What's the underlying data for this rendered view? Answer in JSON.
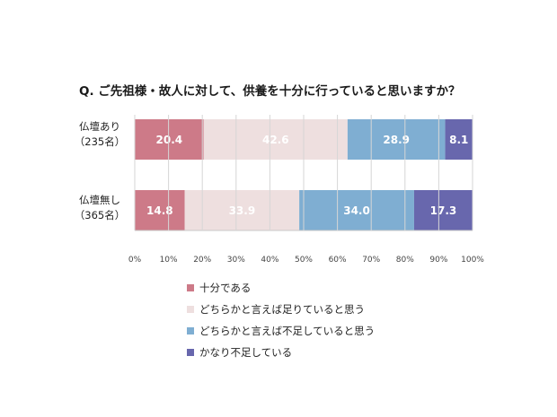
{
  "chart_data": {
    "type": "bar",
    "orientation": "horizontal",
    "stacked": true,
    "title": "Q. ご先祖様・故人に対して、供養を十分に行っていると思いますか？",
    "categories": [
      {
        "label": "仏壇あり",
        "sublabel": "（235名）"
      },
      {
        "label": "仏壇無し",
        "sublabel": "（365名）"
      }
    ],
    "series": [
      {
        "name": "十分である",
        "color": "#cd7a88",
        "text_color": "#ffffff",
        "values": [
          20.4,
          14.8
        ]
      },
      {
        "name": "どちらかと言えば足りていると思う",
        "color": "#eedfdf",
        "text_color": "#ffffff",
        "values": [
          42.6,
          33.9
        ]
      },
      {
        "name": "どちらかと言えば不足していると思う",
        "color": "#7faed2",
        "text_color": "#ffffff",
        "values": [
          28.9,
          34.0
        ]
      },
      {
        "name": "かなり不足している",
        "color": "#6867ad",
        "text_color": "#ffffff",
        "values": [
          8.1,
          17.3
        ]
      }
    ],
    "xlim": [
      0,
      100
    ],
    "xticks": [
      "0%",
      "10%",
      "20%",
      "30%",
      "40%",
      "50%",
      "60%",
      "70%",
      "80%",
      "90%",
      "100%"
    ],
    "grid": false,
    "legend_position": "bottom"
  }
}
